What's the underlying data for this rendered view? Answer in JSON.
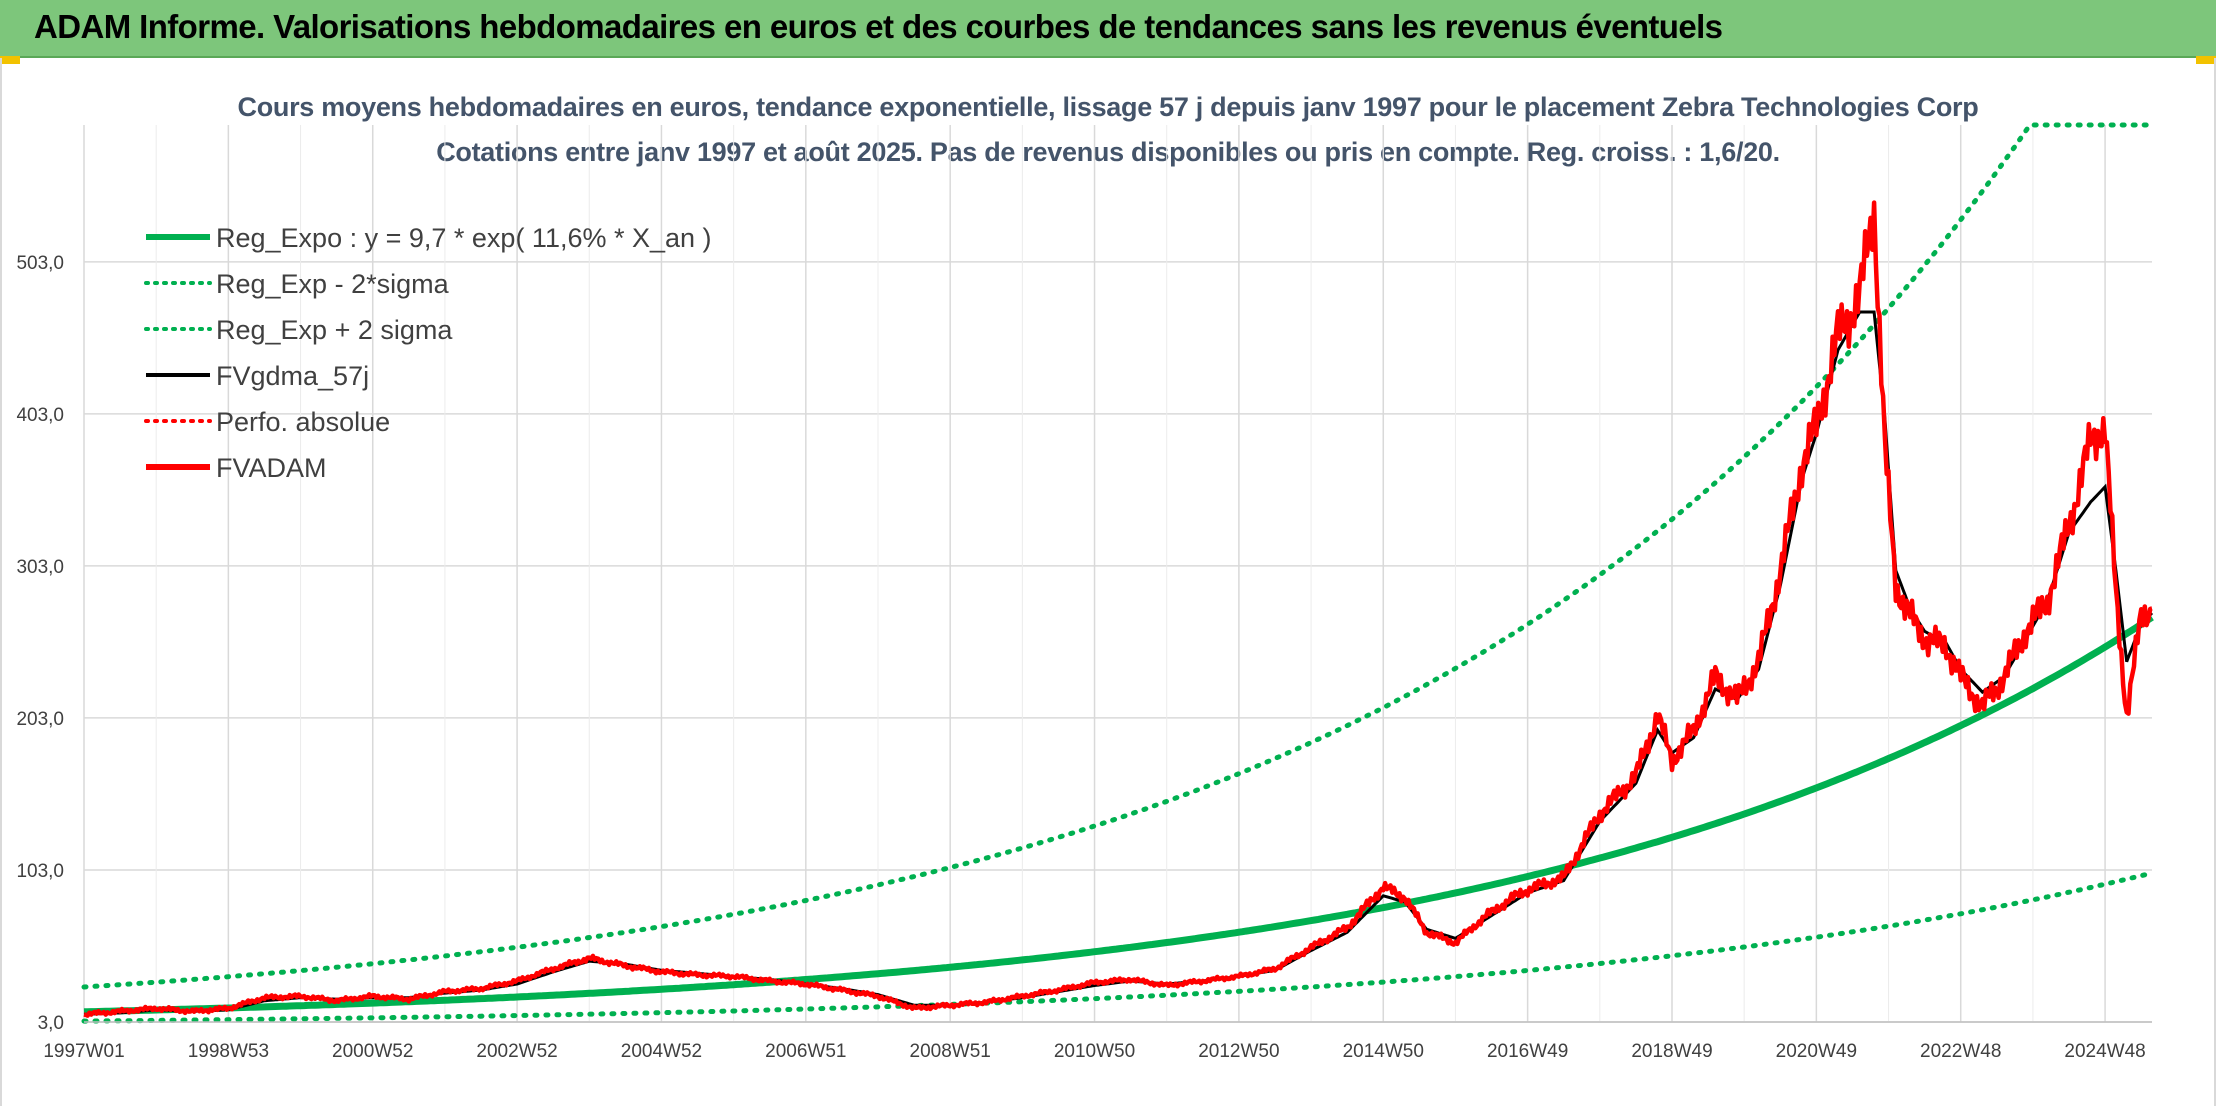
{
  "header": {
    "title": "ADAM Informe. Valorisations hebdomadaires en euros et des courbes de tendances sans les revenus éventuels"
  },
  "colors": {
    "header_bg": "#7dc67b",
    "reg_green": "#00b050",
    "fv_red": "#ff0000",
    "gdma_black": "#000000",
    "title_color": "#44546a",
    "grid": "#d9d9d9"
  },
  "chart_data": {
    "type": "line",
    "title": "Cours moyens hebdomadaires en euros, tendance exponentielle, lissage 57 j depuis janv 1997 pour le placement Zebra Technologies Corp",
    "subtitle": "Cotations entre janv 1997 et août 2025. Pas de revenus disponibles ou pris en compte. Reg. croiss. : 1,6/20.",
    "xlabel": "",
    "ylabel": "",
    "x_tick_labels": [
      "1997W01",
      "1998W53",
      "2000W52",
      "2002W52",
      "2004W52",
      "2006W51",
      "2008W51",
      "2010W50",
      "2012W50",
      "2014W50",
      "2016W49",
      "2018W49",
      "2020W49",
      "2022W48",
      "2024W48"
    ],
    "x_range_years": [
      1997.0,
      2025.65
    ],
    "y_tick_labels": [
      "3,0",
      "103,0",
      "203,0",
      "303,0",
      "403,0",
      "503,0"
    ],
    "ylim": [
      3,
      593
    ],
    "grid": true,
    "legend_position": "top-left",
    "legend": [
      {
        "label": "Reg_Expo : y = 9,7 * exp( 11,6% *  X_an )",
        "color": "#00b050",
        "style": "solid-thick"
      },
      {
        "label": "Reg_Exp - 2*sigma",
        "color": "#00b050",
        "style": "dotted"
      },
      {
        "label": "Reg_Exp + 2 sigma",
        "color": "#00b050",
        "style": "dotted"
      },
      {
        "label": "FVgdma_57j",
        "color": "#000000",
        "style": "solid"
      },
      {
        "label": "Perfo. absolue",
        "color": "#ff0000",
        "style": "dotted"
      },
      {
        "label": "FVADAM",
        "color": "#ff0000",
        "style": "solid-thick"
      }
    ],
    "regression": {
      "a": 9.7,
      "rate": 0.116,
      "x0_year": 1997.0
    },
    "sigma_bands": {
      "lower_start": 3.6,
      "lower_end": 101.0,
      "upper_start": 26.0,
      "upper_end": 593.0,
      "upper_cap": 593.0
    },
    "series": [
      {
        "name": "FVADAM",
        "x": [
          1997.0,
          1997.5,
          1998.0,
          1998.5,
          1999.0,
          1999.5,
          2000.0,
          2000.5,
          2001.0,
          2001.5,
          2002.0,
          2002.5,
          2003.0,
          2003.5,
          2004.0,
          2004.5,
          2005.0,
          2005.5,
          2006.0,
          2006.5,
          2007.0,
          2007.5,
          2008.0,
          2008.5,
          2009.0,
          2009.5,
          2010.0,
          2010.5,
          2011.0,
          2011.5,
          2012.0,
          2012.5,
          2013.0,
          2013.5,
          2014.0,
          2014.5,
          2015.0,
          2015.3,
          2015.6,
          2016.0,
          2016.4,
          2016.8,
          2017.0,
          2017.5,
          2018.0,
          2018.5,
          2018.8,
          2019.0,
          2019.3,
          2019.6,
          2019.9,
          2020.2,
          2020.5,
          2020.8,
          2021.0,
          2021.3,
          2021.6,
          2021.8,
          2021.95,
          2022.1,
          2022.3,
          2022.5,
          2022.8,
          2023.0,
          2023.3,
          2023.6,
          2023.9,
          2024.2,
          2024.5,
          2024.8,
          2025.0,
          2025.15,
          2025.3,
          2025.5,
          2025.65
        ],
        "values": [
          8,
          10,
          12,
          10,
          12,
          19,
          20,
          17,
          20,
          18,
          23,
          25,
          30,
          38,
          45,
          40,
          36,
          34,
          33,
          30,
          28,
          24,
          20,
          12,
          14,
          16,
          20,
          24,
          29,
          31,
          27,
          30,
          33,
          38,
          52,
          65,
          92,
          85,
          62,
          55,
          72,
          85,
          90,
          98,
          140,
          165,
          205,
          175,
          195,
          230,
          215,
          240,
          300,
          370,
          395,
          455,
          480,
          540,
          380,
          290,
          270,
          255,
          250,
          230,
          210,
          230,
          260,
          280,
          330,
          385,
          395,
          285,
          205,
          270,
          275
        ]
      },
      {
        "name": "FVgdma_57j",
        "x": [
          1997.0,
          1997.5,
          1998.0,
          1998.5,
          1999.0,
          1999.5,
          2000.0,
          2000.5,
          2001.0,
          2001.5,
          2002.0,
          2002.5,
          2003.0,
          2003.5,
          2004.0,
          2004.5,
          2005.0,
          2005.5,
          2006.0,
          2006.5,
          2007.0,
          2007.5,
          2008.0,
          2008.5,
          2009.0,
          2009.5,
          2010.0,
          2010.5,
          2011.0,
          2011.5,
          2012.0,
          2012.5,
          2013.0,
          2013.5,
          2014.0,
          2014.5,
          2015.0,
          2015.3,
          2015.6,
          2016.0,
          2016.4,
          2016.8,
          2017.0,
          2017.5,
          2018.0,
          2018.5,
          2018.8,
          2019.0,
          2019.3,
          2019.6,
          2019.9,
          2020.2,
          2020.5,
          2020.8,
          2021.0,
          2021.3,
          2021.6,
          2021.8,
          2021.95,
          2022.1,
          2022.3,
          2022.5,
          2022.8,
          2023.0,
          2023.3,
          2023.6,
          2023.9,
          2024.2,
          2024.5,
          2024.8,
          2025.0,
          2025.15,
          2025.3,
          2025.5,
          2025.65
        ],
        "values": [
          8,
          9,
          11,
          10,
          11,
          17,
          19,
          18,
          19,
          19,
          22,
          24,
          28,
          36,
          43,
          41,
          37,
          35,
          33,
          31,
          28,
          25,
          21,
          14,
          14,
          16,
          19,
          23,
          27,
          30,
          28,
          30,
          33,
          37,
          50,
          62,
          86,
          82,
          64,
          58,
          70,
          82,
          88,
          96,
          135,
          160,
          195,
          180,
          190,
          222,
          215,
          235,
          290,
          360,
          390,
          445,
          470,
          470,
          400,
          300,
          275,
          260,
          252,
          235,
          220,
          230,
          255,
          280,
          325,
          345,
          355,
          300,
          240,
          265,
          272
        ]
      }
    ]
  }
}
